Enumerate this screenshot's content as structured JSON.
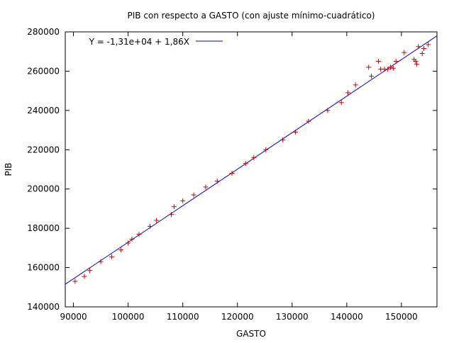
{
  "chart_data": {
    "type": "scatter",
    "title": "PIB con respecto a GASTO (con ajuste mínimo-cuadrático)",
    "xlabel": "GASTO",
    "ylabel": "PIB",
    "xlim": [
      88500,
      156500
    ],
    "ylim": [
      140000,
      280000
    ],
    "xticks": [
      90000,
      100000,
      110000,
      120000,
      130000,
      140000,
      150000
    ],
    "yticks": [
      140000,
      160000,
      180000,
      200000,
      220000,
      240000,
      260000,
      280000
    ],
    "grid": false,
    "legend_position": "top-left",
    "colors": {
      "points": "#cc0000",
      "fit_line": "#0000cc",
      "axes": "#000000",
      "background": "#ffffff"
    },
    "series": [
      {
        "marker": "+",
        "x": [
          90300,
          92000,
          93000,
          95000,
          97000,
          98700,
          100000,
          100700,
          102000,
          104000,
          105200,
          107900,
          108400,
          110000,
          112000,
          114200,
          116300,
          119000,
          121500,
          123000,
          125200,
          128300,
          130600,
          133000,
          136500,
          139000,
          140200,
          141600,
          144000,
          144500,
          145800,
          146200,
          146900,
          147500,
          148000,
          148500,
          149000,
          150500,
          152300,
          152600,
          152800,
          153100,
          153800,
          154100,
          154900
        ],
        "y": [
          153000,
          155500,
          158500,
          163000,
          165500,
          169000,
          172500,
          174500,
          177000,
          181000,
          184000,
          187000,
          191000,
          194000,
          197000,
          201000,
          204000,
          208000,
          213000,
          216000,
          220000,
          225000,
          229000,
          234500,
          240000,
          244000,
          249000,
          253000,
          262000,
          257500,
          265000,
          261000,
          261000,
          261000,
          262000,
          261500,
          265000,
          269500,
          266000,
          265000,
          263500,
          272500,
          269000,
          271500,
          273500
        ]
      }
    ],
    "fit": {
      "label": "Y = -1,31e+04 + 1,86X",
      "intercept": -13100,
      "slope": 1.86
    }
  }
}
